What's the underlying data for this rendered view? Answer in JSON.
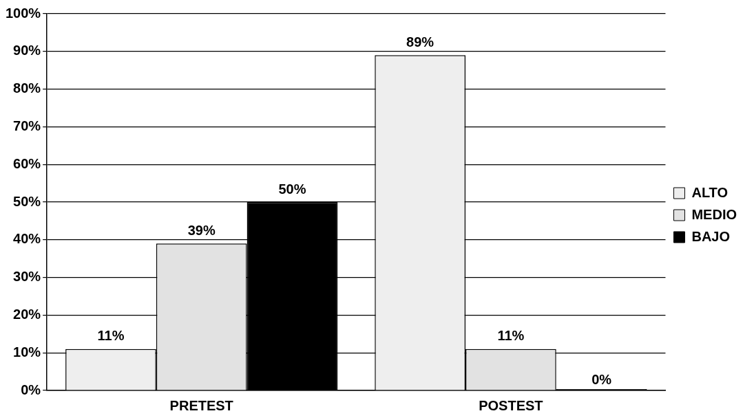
{
  "chart_data": {
    "type": "bar",
    "categories": [
      "PRETEST",
      "POSTEST"
    ],
    "series": [
      {
        "name": "ALTO",
        "color": "#eeeeee",
        "values": [
          11,
          89
        ],
        "value_labels": [
          "11%",
          "89%"
        ]
      },
      {
        "name": "MEDIO",
        "color": "#e2e2e2",
        "values": [
          39,
          11
        ],
        "value_labels": [
          "39%",
          "11%"
        ]
      },
      {
        "name": "BAJO",
        "color": "#000000",
        "values": [
          50,
          0
        ],
        "value_labels": [
          "50%",
          "0%"
        ]
      }
    ],
    "ylim": [
      0,
      100
    ],
    "yticks": [
      {
        "value": 0,
        "label": "0%"
      },
      {
        "value": 10,
        "label": "10%"
      },
      {
        "value": 20,
        "label": "20%"
      },
      {
        "value": 30,
        "label": "30%"
      },
      {
        "value": 40,
        "label": "40%"
      },
      {
        "value": 50,
        "label": "50%"
      },
      {
        "value": 60,
        "label": "60%"
      },
      {
        "value": 70,
        "label": "70%"
      },
      {
        "value": 80,
        "label": "80%"
      },
      {
        "value": 90,
        "label": "90%"
      },
      {
        "value": 100,
        "label": "100%"
      }
    ],
    "grid": "y",
    "legend": "right"
  }
}
